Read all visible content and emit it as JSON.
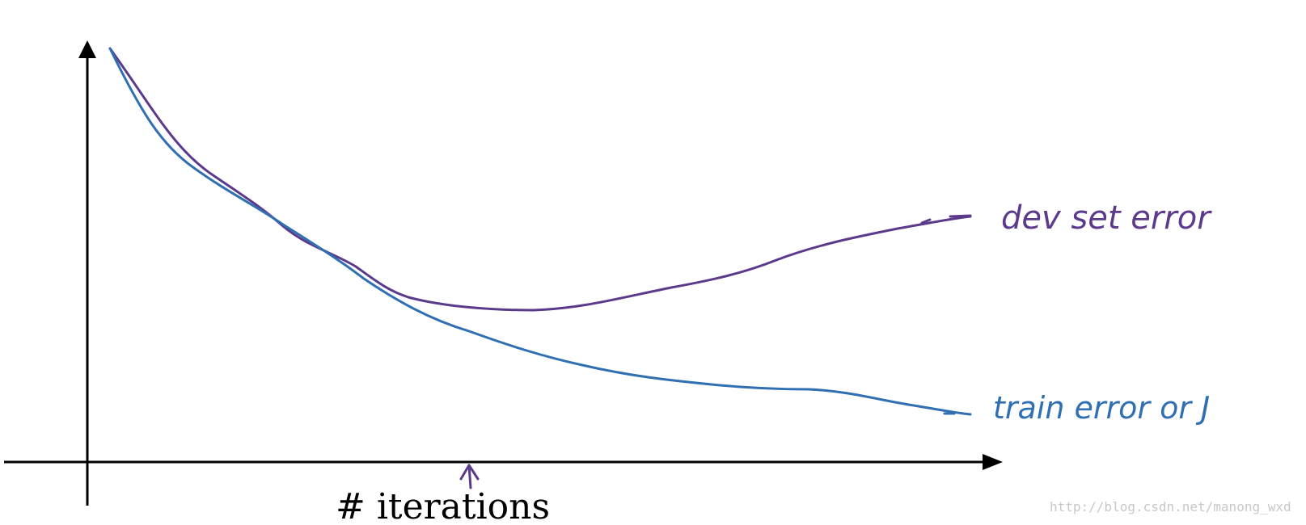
{
  "labels": {
    "dev_curve": "dev set error",
    "train_curve": "train error or J",
    "x_axis": "# iterations",
    "watermark": "http://blog.csdn.net/manong_wxd"
  },
  "colors": {
    "axis": "#000000",
    "dev_curve": "#5b3a8c",
    "train_curve": "#2f6fb2",
    "marker": "#5b3a8c",
    "watermark": "#c8c8c8"
  },
  "icons": {
    "y_axis_arrow": "triangle-up",
    "x_axis_arrow": "triangle-right",
    "early_stopping_marker": "arrow-up"
  }
}
